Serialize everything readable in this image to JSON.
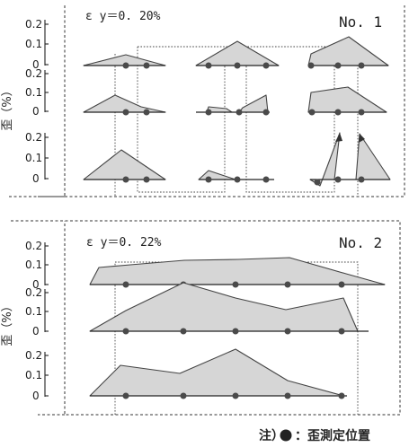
{
  "panel1": {
    "strain_label": "ε y＝0. 20%",
    "number": "No. 1",
    "y_axis_label": "歪（%）",
    "row_ticks": [
      [
        "0.2",
        "0.1",
        "0"
      ],
      [
        "0.2",
        "0.1",
        "0"
      ],
      [
        "0.2",
        "0.1",
        "0"
      ]
    ]
  },
  "panel2": {
    "strain_label": "ε y＝0. 22%",
    "number": "No. 2",
    "y_axis_label": "歪（%）",
    "row_ticks": [
      [
        "0.2",
        "0.1",
        "0"
      ],
      [
        "0.2",
        "0.1",
        "0"
      ],
      [
        "0.2",
        "0.1",
        "0"
      ]
    ]
  },
  "note": {
    "prefix": "注）",
    "marker_icon": "filled-circle",
    "text": "：歪測定位置"
  },
  "colors": {
    "fill": "#d6d6d6",
    "line": "#444444",
    "dot": "#4a4a4a"
  }
}
